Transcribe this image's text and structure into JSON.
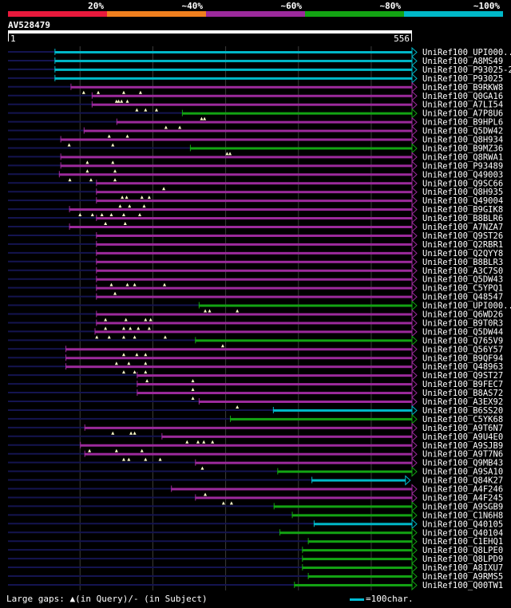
{
  "query": {
    "name": "AV528479",
    "start": "1",
    "end": "556",
    "length": 556
  },
  "colors": {
    "c20": "#e8193c",
    "c40": "#f07f1e",
    "c60": "#9c2a9c",
    "c80": "#13a313",
    "c100": "#00b8c8",
    "guide": "#3a3a3a",
    "unaligned": "#141450",
    "marker": "#ffffcc"
  },
  "identity_legend": [
    "20%",
    "~40%",
    "~60%",
    "~80%",
    "~100%"
  ],
  "footer": {
    "gaps_text": "Large gaps: ▲(in Query)/- (in Subject)",
    "scale_text": "=100char."
  },
  "hits": [
    {
      "name": "UniRef100_UPI000..",
      "s": 65,
      "e": 556,
      "c": "c100",
      "g": []
    },
    {
      "name": "UniRef100_A8MS49",
      "s": 65,
      "e": 556,
      "c": "c100",
      "g": []
    },
    {
      "name": "UniRef100_P93025-2",
      "s": 65,
      "e": 556,
      "c": "c100",
      "g": []
    },
    {
      "name": "UniRef100_P93025",
      "s": 65,
      "e": 556,
      "c": "c100",
      "g": []
    },
    {
      "name": "UniRef100_B9RKW8",
      "s": 87,
      "e": 556,
      "c": "c60",
      "g": []
    },
    {
      "name": "UniRef100_Q0GA16",
      "s": 116,
      "e": 556,
      "c": "c60",
      "g": [
        105,
        125,
        160,
        183
      ]
    },
    {
      "name": "UniRef100_A7LI54",
      "s": 116,
      "e": 556,
      "c": "c60",
      "g": [
        150,
        153,
        157,
        165
      ]
    },
    {
      "name": "UniRef100_A7P8U6",
      "s": 240,
      "e": 556,
      "c": "c80",
      "g": [
        178,
        190,
        205
      ]
    },
    {
      "name": "UniRef100_B9HPL6",
      "s": 150,
      "e": 556,
      "c": "c60",
      "g": [
        267,
        271
      ]
    },
    {
      "name": "UniRef100_Q5DW42",
      "s": 105,
      "e": 556,
      "c": "c60",
      "g": [
        218,
        237
      ]
    },
    {
      "name": "UniRef100_Q8H934",
      "s": 73,
      "e": 556,
      "c": "c60",
      "g": [
        140,
        165
      ]
    },
    {
      "name": "UniRef100_B9MZ36",
      "s": 251,
      "e": 556,
      "c": "c80",
      "g": [
        85,
        145
      ]
    },
    {
      "name": "UniRef100_Q8RWA1",
      "s": 73,
      "e": 556,
      "c": "c60",
      "g": [
        302,
        306
      ]
    },
    {
      "name": "UniRef100_P93489",
      "s": 73,
      "e": 556,
      "c": "c60",
      "g": [
        110,
        145
      ]
    },
    {
      "name": "UniRef100_Q49003",
      "s": 71,
      "e": 556,
      "c": "c60",
      "g": [
        110,
        148
      ]
    },
    {
      "name": "UniRef100_Q9SC66",
      "s": 122,
      "e": 556,
      "c": "c60",
      "g": [
        86,
        115,
        148
      ]
    },
    {
      "name": "UniRef100_Q8H935",
      "s": 122,
      "e": 556,
      "c": "c60",
      "g": [
        215
      ]
    },
    {
      "name": "UniRef100_Q49004",
      "s": 122,
      "e": 556,
      "c": "c60",
      "g": [
        158,
        164,
        185,
        195
      ]
    },
    {
      "name": "UniRef100_B9GIK8",
      "s": 85,
      "e": 556,
      "c": "c60",
      "g": [
        155,
        168,
        188
      ]
    },
    {
      "name": "UniRef100_B8BLR6",
      "s": 122,
      "e": 556,
      "c": "c60",
      "g": [
        100,
        117,
        130,
        143,
        160,
        182
      ]
    },
    {
      "name": "UniRef100_A7NZA7",
      "s": 85,
      "e": 556,
      "c": "c60",
      "g": [
        135,
        162
      ]
    },
    {
      "name": "UniRef100_Q9ST26",
      "s": 122,
      "e": 556,
      "c": "c60",
      "g": []
    },
    {
      "name": "UniRef100_Q2RBR1",
      "s": 122,
      "e": 556,
      "c": "c60",
      "g": []
    },
    {
      "name": "UniRef100_Q2QYY8",
      "s": 122,
      "e": 556,
      "c": "c60",
      "g": []
    },
    {
      "name": "UniRef100_B8BLR3",
      "s": 122,
      "e": 556,
      "c": "c60",
      "g": []
    },
    {
      "name": "UniRef100_A3C7S0",
      "s": 122,
      "e": 556,
      "c": "c60",
      "g": []
    },
    {
      "name": "UniRef100_Q5DW43",
      "s": 122,
      "e": 556,
      "c": "c60",
      "g": []
    },
    {
      "name": "UniRef100_C5YPQ1",
      "s": 122,
      "e": 556,
      "c": "c60",
      "g": [
        143,
        165,
        175,
        216
      ]
    },
    {
      "name": "UniRef100_Q48547",
      "s": 122,
      "e": 556,
      "c": "c60",
      "g": [
        148
      ]
    },
    {
      "name": "UniRef100_UPI000..",
      "s": 263,
      "e": 556,
      "c": "c80",
      "g": []
    },
    {
      "name": "UniRef100_Q6WD26",
      "s": 122,
      "e": 556,
      "c": "c60",
      "g": [
        272,
        278,
        316
      ]
    },
    {
      "name": "UniRef100_B9T0R3",
      "s": 122,
      "e": 556,
      "c": "c60",
      "g": [
        135,
        163,
        190,
        197
      ]
    },
    {
      "name": "UniRef100_Q5DW44",
      "s": 120,
      "e": 556,
      "c": "c60",
      "g": [
        135,
        160,
        169,
        180,
        195
      ]
    },
    {
      "name": "UniRef100_Q765V9",
      "s": 258,
      "e": 556,
      "c": "c80",
      "g": [
        123,
        140,
        160,
        175,
        217
      ]
    },
    {
      "name": "UniRef100_Q56Y57",
      "s": 80,
      "e": 556,
      "c": "c60",
      "g": [
        296
      ]
    },
    {
      "name": "UniRef100_B9QF94",
      "s": 80,
      "e": 556,
      "c": "c60",
      "g": [
        160,
        178,
        190
      ]
    },
    {
      "name": "UniRef100_Q48963",
      "s": 80,
      "e": 556,
      "c": "c60",
      "g": [
        150,
        167,
        190
      ]
    },
    {
      "name": "UniRef100_Q9ST27",
      "s": 178,
      "e": 556,
      "c": "c60",
      "g": [
        160,
        175,
        190
      ]
    },
    {
      "name": "UniRef100_B9FEC7",
      "s": 178,
      "e": 556,
      "c": "c60",
      "g": [
        192,
        255
      ]
    },
    {
      "name": "UniRef100_B8AS72",
      "s": 178,
      "e": 556,
      "c": "c60",
      "g": [
        255
      ]
    },
    {
      "name": "UniRef100_A3EX92",
      "s": 263,
      "e": 556,
      "c": "c60",
      "g": [
        255
      ]
    },
    {
      "name": "UniRef100_B6SS20",
      "s": 365,
      "e": 556,
      "c": "c100",
      "g": [
        316
      ]
    },
    {
      "name": "UniRef100_C5YK68",
      "s": 306,
      "e": 556,
      "c": "c80",
      "g": []
    },
    {
      "name": "UniRef100_A9T6N7",
      "s": 106,
      "e": 556,
      "c": "c60",
      "g": []
    },
    {
      "name": "UniRef100_A9U4E0",
      "s": 212,
      "e": 556,
      "c": "c60",
      "g": [
        145,
        170,
        175
      ]
    },
    {
      "name": "UniRef100_A9SJB9",
      "s": 100,
      "e": 556,
      "c": "c60",
      "g": [
        247,
        262,
        270,
        282
      ]
    },
    {
      "name": "UniRef100_A9T7N6",
      "s": 106,
      "e": 556,
      "c": "c60",
      "g": [
        113,
        150,
        185
      ]
    },
    {
      "name": "UniRef100_Q9MB43",
      "s": 258,
      "e": 556,
      "c": "c60",
      "g": [
        160,
        167,
        190,
        210
      ]
    },
    {
      "name": "UniRef100_A9SA10",
      "s": 371,
      "e": 556,
      "c": "c80",
      "g": [
        268
      ]
    },
    {
      "name": "UniRef100_Q84K27",
      "s": 418,
      "e": 547,
      "c": "c100",
      "g": []
    },
    {
      "name": "UniRef100_A4F246",
      "s": 225,
      "e": 556,
      "c": "c60",
      "g": []
    },
    {
      "name": "UniRef100_A4F245",
      "s": 258,
      "e": 556,
      "c": "c60",
      "g": [
        272
      ]
    },
    {
      "name": "UniRef100_A9SGB9",
      "s": 366,
      "e": 556,
      "c": "c80",
      "g": [
        297,
        308
      ]
    },
    {
      "name": "UniRef100_C1N6H8",
      "s": 391,
      "e": 556,
      "c": "c80",
      "g": []
    },
    {
      "name": "UniRef100_Q40105",
      "s": 421,
      "e": 556,
      "c": "c100",
      "g": []
    },
    {
      "name": "UniRef100_Q40104",
      "s": 374,
      "e": 556,
      "c": "c80",
      "g": []
    },
    {
      "name": "UniRef100_C1EHQ1",
      "s": 413,
      "e": 556,
      "c": "c80",
      "g": []
    },
    {
      "name": "UniRef100_Q8LPE0",
      "s": 405,
      "e": 556,
      "c": "c80",
      "g": []
    },
    {
      "name": "UniRef100_Q8LPD9",
      "s": 405,
      "e": 556,
      "c": "c80",
      "g": []
    },
    {
      "name": "UniRef100_A8IXU7",
      "s": 405,
      "e": 556,
      "c": "c80",
      "g": []
    },
    {
      "name": "UniRef100_A9RMS5",
      "s": 413,
      "e": 556,
      "c": "c80",
      "g": []
    },
    {
      "name": "UniRef100_Q00TW1",
      "s": 394,
      "e": 556,
      "c": "c80",
      "g": []
    }
  ]
}
